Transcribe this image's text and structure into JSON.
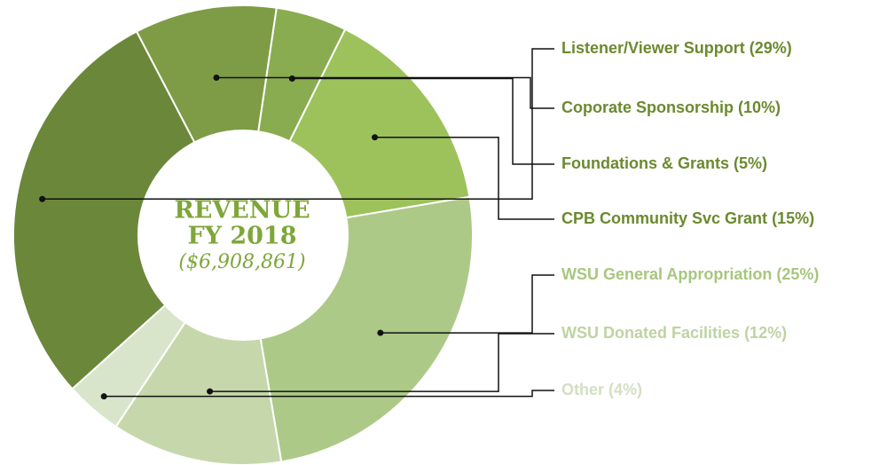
{
  "chart_data": {
    "type": "pie",
    "donut": true,
    "title": "REVENUE",
    "subtitle": "FY 2018",
    "total_label": "($6,908,861)",
    "categories": [
      "Listener/Viewer Support",
      "Coporate Sponsorship",
      "Foundations & Grants",
      "CPB Community Svc Grant",
      "WSU General Appropriation",
      "WSU Donated Facilities",
      "Other"
    ],
    "values": [
      29,
      10,
      5,
      15,
      25,
      12,
      4
    ],
    "value_labels": [
      "(29%)",
      "(10%)",
      "(5%)",
      "(15%)",
      "(25%)",
      "(12%)",
      "(4%)"
    ],
    "colors": [
      "#6b883a",
      "#7d9c45",
      "#8aac50",
      "#9dc25b",
      "#adc987",
      "#c6d8ab",
      "#d9e5ca"
    ],
    "label_colors": [
      "#6b8a2e",
      "#6b8a2e",
      "#6b8a2e",
      "#6b8a2e",
      "#a8c67f",
      "#bfd3a2",
      "#d2dfc1"
    ]
  }
}
